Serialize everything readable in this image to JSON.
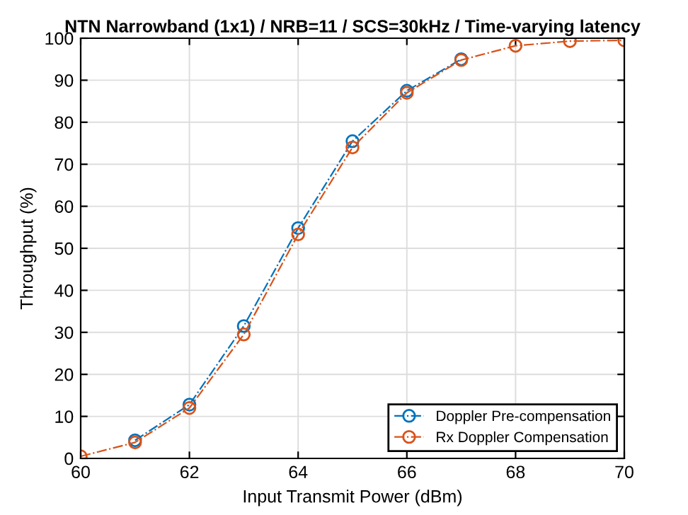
{
  "chart_data": {
    "type": "line",
    "title": "NTN Narrowband (1x1) / NRB=11 / SCS=30kHz / Time-varying latency",
    "xlabel": "Input Transmit Power (dBm)",
    "ylabel": "Throughput (%)",
    "x": [
      60,
      61,
      62,
      63,
      64,
      65,
      66,
      67,
      68,
      69,
      70
    ],
    "series": [
      {
        "name": "Doppler Pre-compensation",
        "color": "#0072bd",
        "values": [
          null,
          4.3,
          12.8,
          31.5,
          54.8,
          75.5,
          87.5,
          95,
          null,
          null,
          null
        ]
      },
      {
        "name": "Rx Doppler Compensation",
        "color": "#d95319",
        "values": [
          0.5,
          3.8,
          12,
          29.5,
          53.3,
          74,
          87,
          94.8,
          98.2,
          99.3,
          99.5
        ]
      }
    ],
    "xlim": [
      60,
      70
    ],
    "xticks": [
      60,
      62,
      64,
      66,
      68,
      70
    ],
    "ylim": [
      0,
      100
    ],
    "yticks": [
      0,
      10,
      20,
      30,
      40,
      50,
      60,
      70,
      80,
      90,
      100
    ],
    "grid": true,
    "legend": "bottom right",
    "marker": "circle",
    "line_style": "dashdot"
  }
}
